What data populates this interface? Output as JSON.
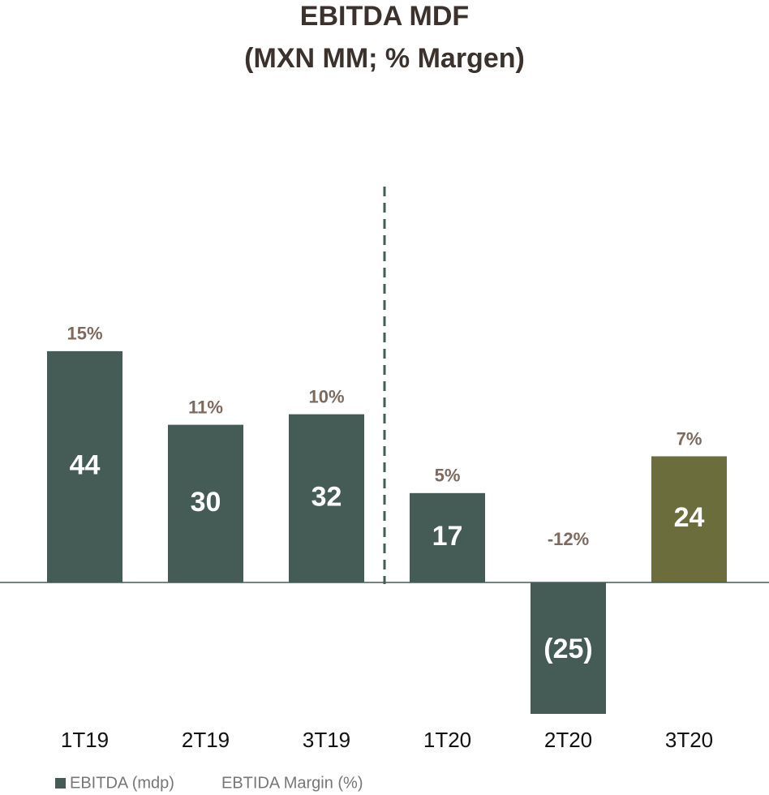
{
  "chart_data": {
    "type": "bar",
    "title": "EBITDA MDF",
    "subtitle": "(MXN MM; % Margen)",
    "categories": [
      "1T19",
      "2T19",
      "3T19",
      "1T20",
      "2T20",
      "3T20"
    ],
    "series": [
      {
        "name": "EBITDA (mdp)",
        "color": "#455c56",
        "colors": [
          "#455c56",
          "#455c56",
          "#455c56",
          "#455c56",
          "#455c56",
          "#6b6e3c"
        ],
        "values": [
          44,
          30,
          32,
          17,
          -25,
          24
        ],
        "value_labels": [
          "44",
          "30",
          "32",
          "17",
          "(25)",
          "24"
        ]
      },
      {
        "name": "EBTIDA Margin (%)",
        "color": "#7d6a5f",
        "values": [
          15,
          11,
          10,
          5,
          -12,
          7
        ],
        "value_labels": [
          "15%",
          "11%",
          "10%",
          "5%",
          "-12%",
          "7%"
        ]
      }
    ],
    "legend": "bottom-left",
    "grid": false
  }
}
